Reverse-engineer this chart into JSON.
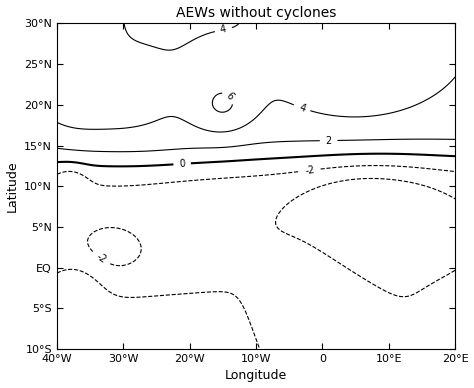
{
  "title": "AEWs without cyclones",
  "xlabel": "Longitude",
  "ylabel": "Latitude",
  "lon_min": -40,
  "lon_max": 20,
  "lat_min": -10,
  "lat_max": 30,
  "xticks": [
    -40,
    -30,
    -20,
    -10,
    0,
    10,
    20
  ],
  "xtick_labels": [
    "40°W",
    "30°W",
    "20°W",
    "10°W",
    "0",
    "10°E",
    "20°E"
  ],
  "yticks": [
    -10,
    -5,
    0,
    5,
    10,
    15,
    20,
    25,
    30
  ],
  "ytick_labels": [
    "10°S",
    "5°S",
    "EQ",
    "5°N",
    "10°N",
    "15°N",
    "20°N",
    "25°N",
    "30°N"
  ],
  "background_color": "#ffffff"
}
